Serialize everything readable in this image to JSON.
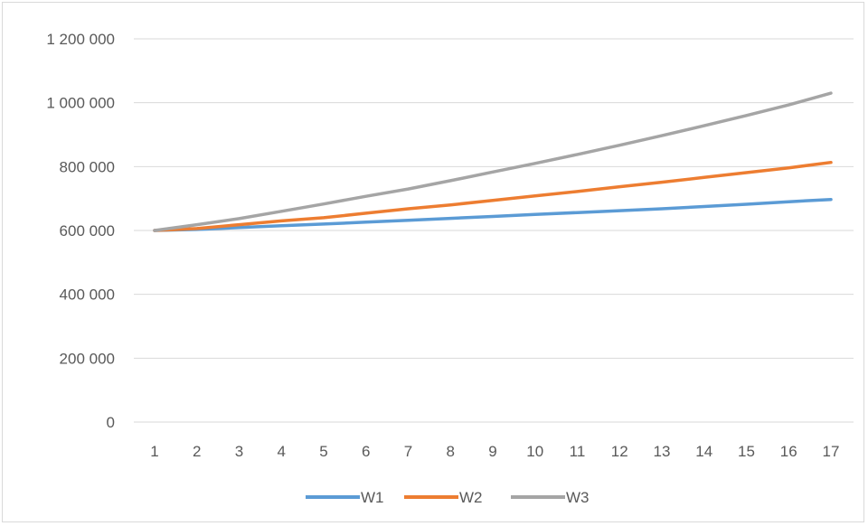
{
  "chart_data": {
    "type": "line",
    "title": "",
    "xlabel": "",
    "ylabel": "",
    "x": [
      1,
      2,
      3,
      4,
      5,
      6,
      7,
      8,
      9,
      10,
      11,
      12,
      13,
      14,
      15,
      16,
      17
    ],
    "x_tick_labels": [
      "1",
      "2",
      "3",
      "4",
      "5",
      "6",
      "7",
      "8",
      "9",
      "10",
      "11",
      "12",
      "13",
      "14",
      "15",
      "16",
      "17"
    ],
    "ylim": [
      0,
      1200000
    ],
    "y_ticks": [
      0,
      200000,
      400000,
      600000,
      800000,
      1000000,
      1200000
    ],
    "y_tick_labels": [
      "0",
      "200 000",
      "400 000",
      "600 000",
      "800 000",
      "1 000 000",
      "1 200 000"
    ],
    "grid": true,
    "legend": "bottom",
    "series": [
      {
        "name": "W1",
        "color": "#5b9bd5",
        "values": [
          600000,
          603000,
          609000,
          615000,
          620000,
          626000,
          632000,
          638000,
          644000,
          650000,
          656000,
          662000,
          668000,
          675000,
          682000,
          690000,
          697000
        ]
      },
      {
        "name": "W2",
        "color": "#ed7d31",
        "values": [
          600000,
          606000,
          618000,
          630000,
          640000,
          654000,
          668000,
          680000,
          694000,
          708000,
          722000,
          737000,
          751000,
          766000,
          781000,
          796000,
          813000
        ]
      },
      {
        "name": "W3",
        "color": "#a5a5a5",
        "values": [
          600000,
          618000,
          637000,
          660000,
          683000,
          707000,
          730000,
          756000,
          783000,
          810000,
          838000,
          867000,
          897000,
          928000,
          960000,
          993000,
          1030000
        ]
      }
    ]
  }
}
